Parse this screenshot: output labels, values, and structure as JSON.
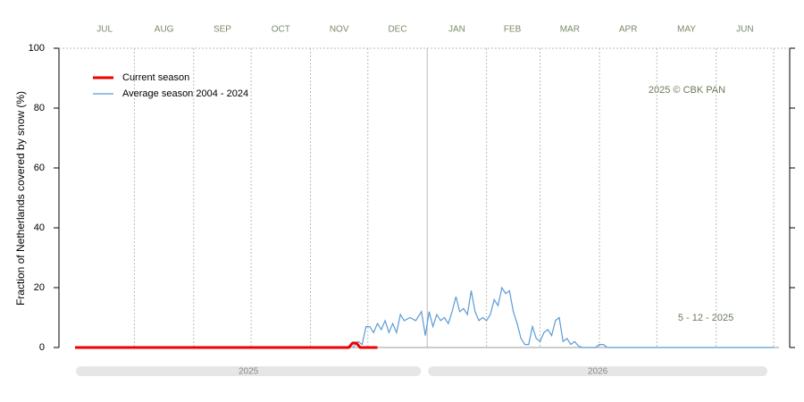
{
  "chart_data": {
    "type": "line",
    "y_label": "Fraction of  Netherlands  covered by snow (%)",
    "xlim": [
      0,
      365
    ],
    "ylim": [
      0,
      100
    ],
    "yticks": [
      0,
      20,
      40,
      60,
      80,
      100
    ],
    "xticks": [
      {
        "value": 15.5,
        "label": "JUL"
      },
      {
        "value": 46.5,
        "label": "AUG"
      },
      {
        "value": 77,
        "label": "SEP"
      },
      {
        "value": 107.5,
        "label": "OCT"
      },
      {
        "value": 138,
        "label": "NOV"
      },
      {
        "value": 168.5,
        "label": "DEC"
      },
      {
        "value": 199.5,
        "label": "JAN"
      },
      {
        "value": 228.5,
        "label": "FEB"
      },
      {
        "value": 258.5,
        "label": "MAR"
      },
      {
        "value": 289,
        "label": "APR"
      },
      {
        "value": 319.5,
        "label": "MAY"
      },
      {
        "value": 350,
        "label": "JUN"
      }
    ],
    "x_gridlines": [
      31,
      62,
      92,
      123,
      153,
      215,
      243,
      274,
      304,
      335,
      365
    ],
    "year_line": 184,
    "periods": [
      {
        "label": "2025",
        "start": 0,
        "end": 184
      },
      {
        "label": "2026",
        "start": 184,
        "end": 365
      }
    ],
    "legend": "top-left",
    "annotations": [
      "2025  © CBK PAN",
      "5 - 12 - 2025"
    ],
    "series": [
      {
        "name": "Current season",
        "color": "#ee0000",
        "x": [
          0,
          143,
          145,
          147,
          149,
          158
        ],
        "values": [
          0,
          0,
          1.5,
          1.5,
          0,
          0
        ]
      },
      {
        "name": "Average season 2004 - 2024",
        "color": "#5b9bd5",
        "x": [
          145,
          148,
          150,
          152,
          154,
          156,
          158,
          160,
          162,
          164,
          166,
          168,
          170,
          172,
          175,
          178,
          181,
          183,
          185,
          187,
          189,
          191,
          193,
          195,
          197,
          199,
          201,
          203,
          205,
          207,
          209,
          211,
          213,
          215,
          217,
          219,
          221,
          223,
          225,
          227,
          229,
          231,
          233,
          235,
          237,
          239,
          241,
          243,
          245,
          247,
          249,
          251,
          253,
          255,
          257,
          259,
          261,
          263,
          265,
          272,
          274,
          276,
          278,
          365
        ],
        "values": [
          0,
          2,
          1,
          7,
          7,
          5,
          8,
          6,
          9,
          5,
          8,
          5,
          11,
          9,
          10,
          9,
          12,
          4,
          12,
          7,
          11,
          9,
          10,
          8,
          12,
          17,
          12,
          13,
          11,
          19,
          12,
          9,
          10,
          9,
          11,
          16,
          14,
          20,
          18,
          19,
          12,
          8,
          3,
          1,
          1,
          7,
          3,
          2,
          5,
          6,
          4,
          9,
          10,
          2,
          3,
          1,
          2,
          0.5,
          0,
          0,
          1,
          1,
          0,
          0
        ]
      }
    ]
  }
}
